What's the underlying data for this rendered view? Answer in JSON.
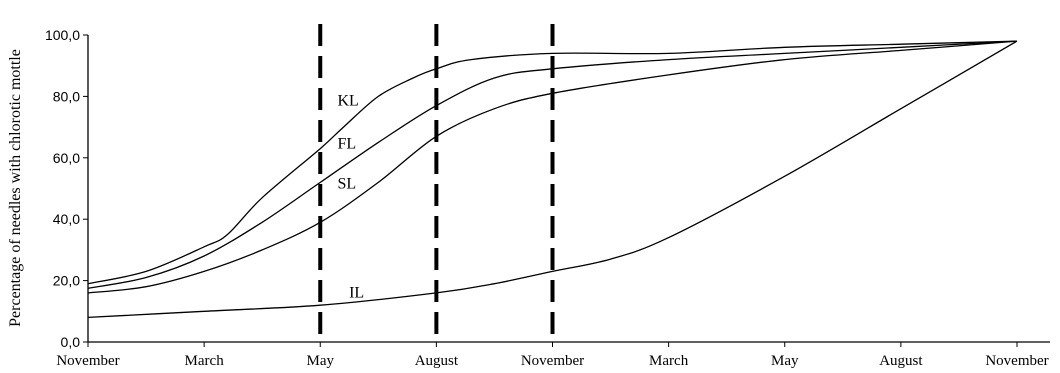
{
  "chart_data": {
    "type": "line",
    "ylabel": "Percentage of needles with chlorotic mottle",
    "xlabel": "",
    "ylim": [
      0,
      100
    ],
    "yticks": [
      "0,0",
      "20,0",
      "40,0",
      "60,0",
      "80,0",
      "100,0"
    ],
    "yticks_values": [
      0,
      20,
      40,
      60,
      80,
      100
    ],
    "categories": [
      "November",
      "March",
      "May",
      "August",
      "November",
      "March",
      "May",
      "August",
      "November"
    ],
    "x": [
      0,
      1,
      2,
      3,
      4,
      5,
      6,
      7,
      8
    ],
    "series": [
      {
        "name": "KL",
        "x": [
          0,
          0.5,
          1,
          1.2,
          1.5,
          2,
          2.2,
          2.5,
          2.8,
          3,
          3.3,
          4,
          5,
          6,
          7,
          8
        ],
        "values": [
          19,
          23,
          31,
          35,
          47,
          63,
          70,
          80,
          86,
          89,
          92,
          94,
          94,
          96,
          97,
          98
        ]
      },
      {
        "name": "FL",
        "x": [
          0,
          0.5,
          1,
          1.5,
          2,
          2.5,
          3,
          3.5,
          4,
          5,
          6,
          7,
          8
        ],
        "values": [
          17.5,
          21,
          28,
          39,
          52,
          65,
          77,
          86,
          89,
          92,
          94,
          96,
          98
        ]
      },
      {
        "name": "SL",
        "x": [
          0,
          0.5,
          1,
          1.5,
          2,
          2.5,
          3,
          3.5,
          4,
          5,
          6,
          7,
          8
        ],
        "values": [
          16,
          18,
          23,
          30,
          39,
          52,
          67,
          76,
          81,
          87,
          92,
          95,
          98
        ]
      },
      {
        "name": "IL",
        "x": [
          0,
          1,
          2,
          3,
          3.5,
          4,
          4.5,
          5,
          6,
          7,
          8
        ],
        "values": [
          8,
          10,
          12,
          16,
          19,
          23,
          27,
          34,
          54,
          76,
          98
        ]
      }
    ],
    "vertical_dashed_markers_at": [
      2,
      3,
      4
    ],
    "grid": false,
    "legend": "inline"
  }
}
